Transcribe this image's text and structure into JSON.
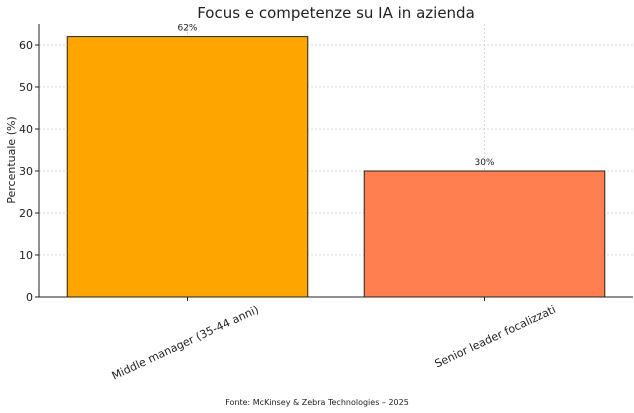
{
  "chart_data": {
    "type": "bar",
    "title": "Focus e competenze su IA in azienda",
    "xlabel": "",
    "ylabel": "Percentuale (%)",
    "categories": [
      "Middle manager (35-44 anni)",
      "Senior leader focalizzati"
    ],
    "values": [
      62,
      30
    ],
    "data_labels": [
      "62%",
      "30%"
    ],
    "colors": [
      "#FFA500",
      "#FF7F50"
    ],
    "ylim": [
      0,
      65
    ],
    "yticks": [
      0,
      10,
      20,
      30,
      40,
      50,
      60
    ],
    "grid": true
  },
  "footer": {
    "source": "Fonte: McKinsey & Zebra Technologies – 2025"
  }
}
